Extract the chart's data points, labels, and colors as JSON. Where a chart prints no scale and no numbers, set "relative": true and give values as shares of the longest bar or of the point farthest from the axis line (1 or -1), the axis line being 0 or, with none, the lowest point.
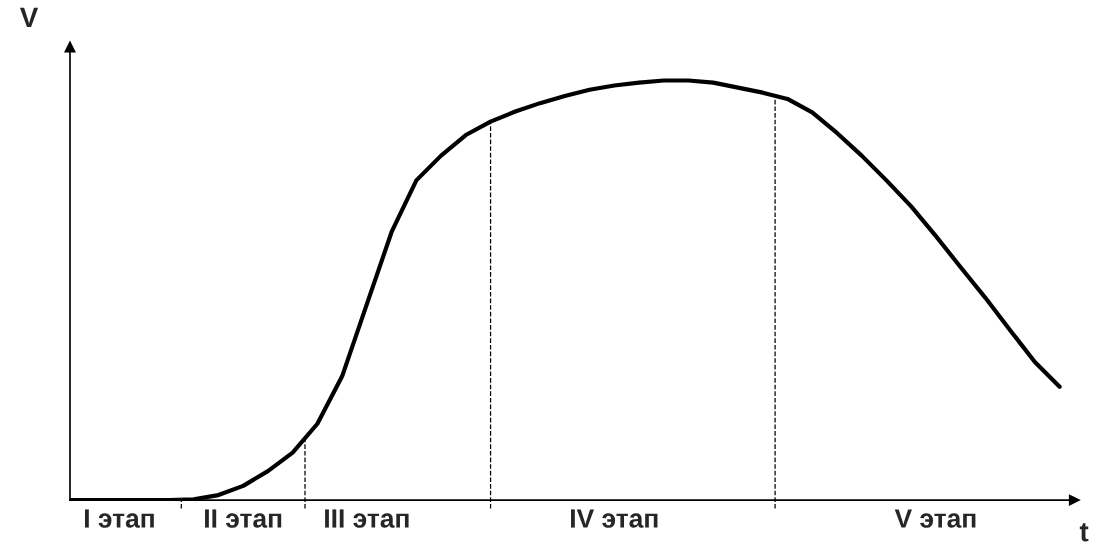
{
  "chart_data": {
    "type": "line",
    "relative": true,
    "xlabel": "t",
    "ylabel": "V",
    "categories": [
      null,
      null,
      "I этап",
      null,
      null,
      null,
      null,
      "II этап",
      null,
      null,
      null,
      null,
      "III этап",
      null,
      null,
      null,
      null,
      null,
      null,
      null,
      null,
      null,
      "IV этап",
      null,
      null,
      null,
      null,
      null,
      null,
      null,
      null,
      null,
      null,
      null,
      null,
      "V этап",
      null,
      null,
      null,
      null,
      null
    ],
    "series": [
      {
        "color": "#000000",
        "values": [
          0,
          0,
          0,
          0,
          0,
          0.002,
          0.012,
          0.034,
          0.069,
          0.113,
          0.182,
          0.295,
          0.467,
          0.639,
          0.762,
          0.821,
          0.87,
          0.902,
          0.926,
          0.946,
          0.963,
          0.978,
          0.988,
          0.995,
          1,
          1,
          0.995,
          0.983,
          0.971,
          0.956,
          0.924,
          0.875,
          0.821,
          0.762,
          0.7,
          0.629,
          0.555,
          0.482,
          0.405,
          0.329,
          0.27
        ]
      }
    ],
    "legend": false,
    "marker": "none",
    "line_style": "solid"
  }
}
